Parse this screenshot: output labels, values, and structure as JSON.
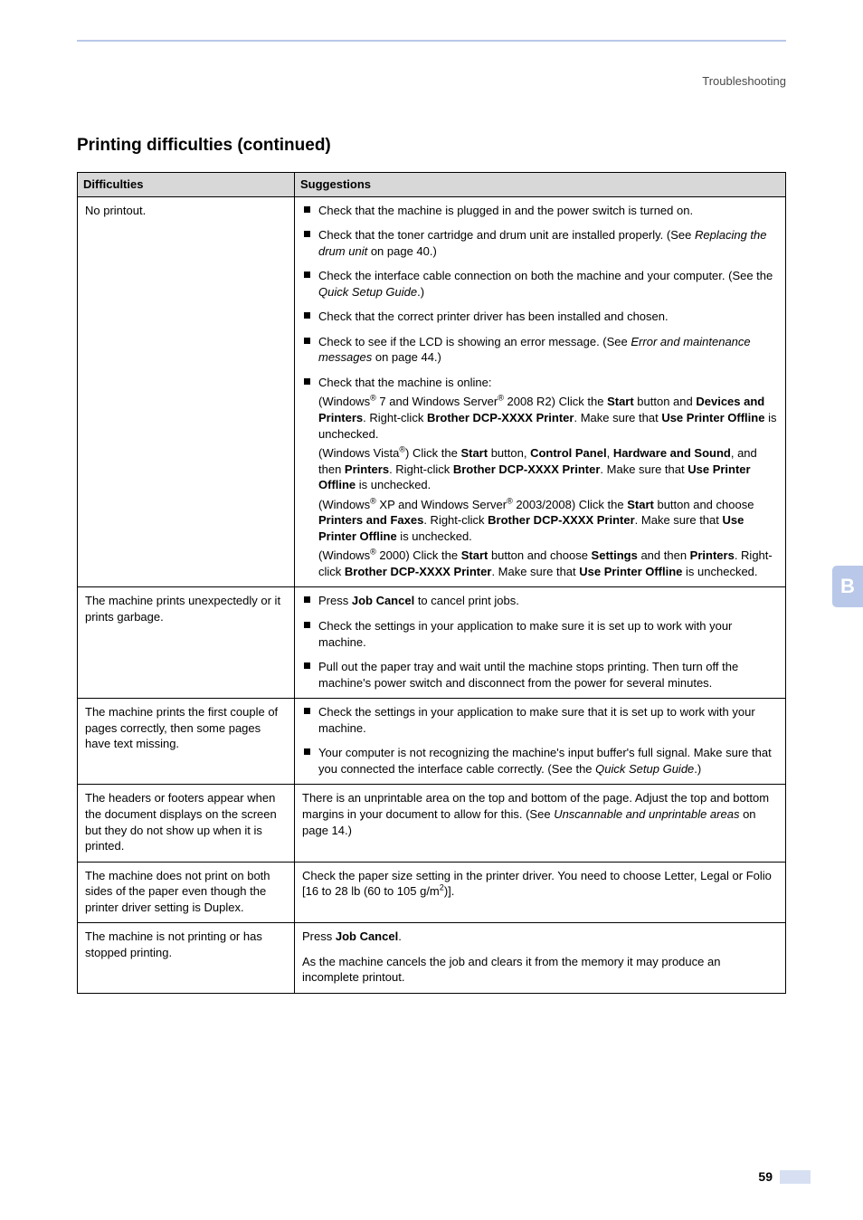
{
  "breadcrumb": "Troubleshooting",
  "side_tab": "B",
  "section_title": "Printing difficulties (continued)",
  "page_number": "59",
  "headers": {
    "col1": "Difficulties",
    "col2": "Suggestions"
  },
  "colors": {
    "header_rule": "#b9c8e8",
    "side_tab_bg": "#b9c8e8",
    "side_tab_text": "#ffffff",
    "table_header_bg": "#d8d8d8",
    "page_bar": "#d7e0f2",
    "text": "#000000"
  },
  "rows": [
    {
      "difficulty": "No printout.",
      "suggestions_html": [
        "Check that the machine is plugged in and the power switch is turned on.",
        "Check that the toner cartridge and drum unit are installed properly. (See <i>Replacing the drum unit</i> on page 40.)",
        "Check the interface cable connection on both the machine and your computer. (See the <i>Quick Setup Guide</i>.)",
        "Check that the correct printer driver has been installed and chosen.",
        "Check to see if the LCD is showing an error message. (See <i>Error and maintenance messages</i> on page 44.)",
        "Check that the machine is online:<div class=\"sub\">(Windows<sup>®</sup> 7 and Windows Server<sup>®</sup> 2008 R2) Click the <b>Start</b> button and <b>Devices and Printers</b>. Right-click <b>Brother DCP-XXXX Printer</b>. Make sure that <b>Use Printer Offline</b> is unchecked.</div><div class=\"sub\">(Windows Vista<sup>®</sup>) Click the <b>Start</b> button, <b>Control Panel</b>, <b>Hardware and Sound</b>, and then <b>Printers</b>. Right-click <b>Brother DCP-XXXX Printer</b>. Make sure that <b>Use Printer Offline</b> is unchecked.</div><div class=\"sub\">(Windows<sup>®</sup> XP and Windows Server<sup>®</sup> 2003/2008) Click the <b>Start</b> button and choose <b>Printers and Faxes</b>. Right-click <b>Brother DCP-XXXX Printer</b>. Make sure that <b>Use Printer Offline</b> is unchecked.</div><div class=\"sub\">(Windows<sup>®</sup> 2000) Click the <b>Start</b> button and choose <b>Settings</b> and then <b>Printers</b>. Right-click <b>Brother DCP-XXXX Printer</b>. Make sure that <b>Use Printer Offline</b> is unchecked.</div>"
      ]
    },
    {
      "difficulty": "The machine prints unexpectedly or it prints garbage.",
      "suggestions_html": [
        "Press <b>Job Cancel</b> to cancel print jobs.",
        "Check the settings in your application to make sure it is set up to work with your machine.",
        "Pull out the paper tray and wait until the machine stops printing. Then turn off the machine's power switch and disconnect from the power for several minutes."
      ]
    },
    {
      "difficulty": "The machine prints the first couple of pages correctly, then some pages have text missing.",
      "suggestions_html": [
        "Check the settings in your application to make sure that it is set up to work with your machine.",
        "Your computer is not recognizing the machine's input buffer's full signal. Make sure that you connected the interface cable correctly. (See the <i>Quick Setup Guide</i>.)"
      ]
    },
    {
      "difficulty": "The headers or footers appear when the document displays on the screen but they do not show up when it is printed.",
      "plain_html": "There is an unprintable area on the top and bottom of the page. Adjust the top and bottom margins in your document to allow for this. (See <i>Unscannable and unprintable areas</i> on page 14.)"
    },
    {
      "difficulty": "The machine does not print on both sides of the paper even though the printer driver setting is Duplex.",
      "plain_html": "Check the paper size setting in the printer driver. You need to choose Letter, Legal or Folio [16 to 28 lb (60 to 105 g/m<sup>2</sup>)]."
    },
    {
      "difficulty": "The machine is not printing or has stopped printing.",
      "plain_html": "<p>Press <b>Job Cancel</b>.</p><p>As the machine cancels the job and clears it from the memory it may produce an incomplete printout.</p>"
    }
  ]
}
